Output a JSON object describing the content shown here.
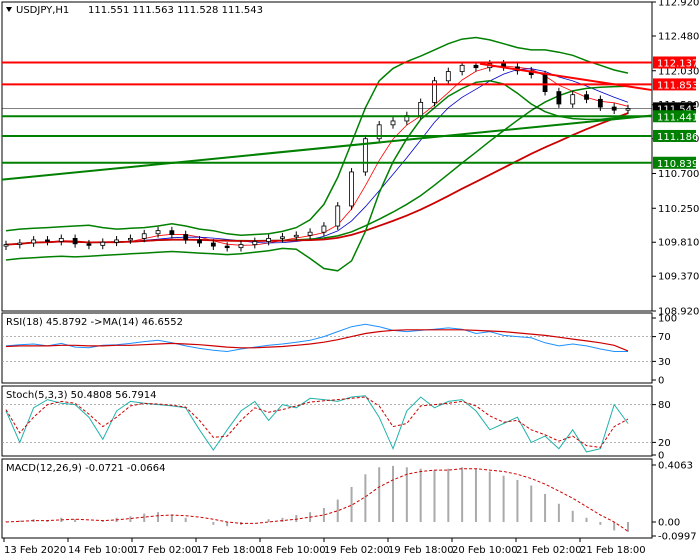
{
  "header": {
    "symbol": "USDJPY,H1",
    "ohlc": "111.551 111.563 111.528 111.543"
  },
  "price_axis": {
    "ticks": [
      "112.920",
      "112.480",
      "112.030",
      "111.590",
      "111.150",
      "110.700",
      "110.250",
      "109.810",
      "109.370",
      "108.920"
    ],
    "ylim": [
      108.92,
      112.92
    ]
  },
  "time_axis": {
    "ticks": [
      "13 Feb 2020",
      "14 Feb 10:00",
      "17 Feb 02:00",
      "17 Feb 18:00",
      "18 Feb 10:00",
      "19 Feb 02:00",
      "19 Feb 18:00",
      "20 Feb 10:00",
      "21 Feb 02:00",
      "21 Feb 18:00"
    ]
  },
  "levels": [
    {
      "label": "112.137",
      "value": 112.137,
      "color": "#ff0000",
      "text_color": "#ffffff"
    },
    {
      "label": "111.853",
      "value": 111.853,
      "color": "#ff0000",
      "text_color": "#ffffff"
    },
    {
      "label": "111.543",
      "value": 111.543,
      "color": "#000000",
      "text_color": "#ffffff"
    },
    {
      "label": "111.441",
      "value": 111.441,
      "color": "#008000",
      "text_color": "#ffffff"
    },
    {
      "label": "111.186",
      "value": 111.186,
      "color": "#008000",
      "text_color": "#ffffff"
    },
    {
      "label": "110.839",
      "value": 110.839,
      "color": "#008000",
      "text_color": "#ffffff"
    }
  ],
  "chart_data": [
    {
      "type": "line",
      "panel": "price",
      "series": [
        {
          "role": "close",
          "values": [
            109.78,
            109.8,
            109.84,
            109.82,
            109.86,
            109.79,
            109.77,
            109.81,
            109.84,
            109.86,
            109.92,
            109.96,
            109.91,
            109.84,
            109.8,
            109.76,
            109.74,
            109.78,
            109.82,
            109.86,
            109.88,
            109.9,
            109.94,
            110.02,
            110.28,
            110.72,
            111.15,
            111.33,
            111.38,
            111.45,
            111.62,
            111.9,
            112.02,
            112.1,
            112.07,
            112.12,
            112.08,
            112.03,
            111.98,
            111.76,
            111.6,
            111.72,
            111.66,
            111.56,
            111.52,
            111.54
          ]
        },
        {
          "role": "bollinger_upper",
          "values": [
            109.96,
            109.98,
            109.99,
            110.0,
            110.01,
            110.02,
            110.03,
            110.0,
            109.98,
            109.99,
            110.0,
            110.02,
            110.05,
            110.02,
            109.98,
            109.96,
            109.92,
            109.9,
            109.91,
            109.92,
            109.95,
            110.0,
            110.1,
            110.3,
            110.65,
            111.1,
            111.55,
            111.9,
            112.06,
            112.15,
            112.22,
            112.3,
            112.38,
            112.44,
            112.46,
            112.43,
            112.38,
            112.33,
            112.3,
            112.3,
            112.27,
            112.23,
            112.16,
            112.1,
            112.04,
            112.0
          ]
        },
        {
          "role": "bollinger_lower",
          "values": [
            109.58,
            109.6,
            109.61,
            109.62,
            109.63,
            109.62,
            109.63,
            109.64,
            109.65,
            109.66,
            109.67,
            109.68,
            109.69,
            109.68,
            109.67,
            109.66,
            109.65,
            109.66,
            109.68,
            109.7,
            109.73,
            109.72,
            109.6,
            109.47,
            109.44,
            109.57,
            109.95,
            110.45,
            110.85,
            111.15,
            111.4,
            111.55,
            111.7,
            111.8,
            111.88,
            111.9,
            111.86,
            111.74,
            111.6,
            111.5,
            111.44,
            111.41,
            111.4,
            111.4,
            111.42,
            111.43
          ]
        }
      ],
      "ylim": [
        108.92,
        112.92
      ]
    },
    {
      "type": "line",
      "panel": "rsi",
      "title": "RSI(18) 45.8792 ->MA(14) 46.6552",
      "series": [
        {
          "role": "rsi",
          "values": [
            55,
            57,
            58,
            55,
            59,
            53,
            52,
            56,
            57,
            59,
            62,
            64,
            60,
            55,
            51,
            48,
            46,
            50,
            53,
            56,
            58,
            61,
            64,
            70,
            78,
            86,
            90,
            86,
            80,
            78,
            80,
            82,
            84,
            82,
            75,
            78,
            72,
            70,
            68,
            60,
            55,
            58,
            55,
            50,
            46,
            46
          ]
        },
        {
          "role": "ma",
          "values": [
            54,
            55,
            55,
            55,
            56,
            56,
            55,
            55,
            56,
            56,
            57,
            58,
            59,
            58,
            57,
            55,
            53,
            52,
            52,
            53,
            54,
            56,
            58,
            61,
            65,
            70,
            75,
            78,
            80,
            81,
            81,
            81,
            81,
            81,
            80,
            79,
            78,
            76,
            74,
            72,
            69,
            66,
            63,
            60,
            56,
            47
          ]
        }
      ],
      "levels": [
        30,
        70
      ],
      "ylim": [
        0,
        100
      ],
      "ticks": [
        "100",
        "70",
        "30",
        "0"
      ]
    },
    {
      "type": "line",
      "panel": "stochastic",
      "title": "Stoch(5,3,3) 50.4808 56.7914",
      "series": [
        {
          "role": "main",
          "values": [
            70,
            20,
            75,
            88,
            82,
            80,
            60,
            25,
            70,
            85,
            82,
            80,
            78,
            75,
            40,
            8,
            40,
            70,
            85,
            55,
            80,
            75,
            90,
            88,
            85,
            92,
            94,
            60,
            10,
            70,
            92,
            75,
            85,
            88,
            70,
            40,
            50,
            60,
            20,
            30,
            10,
            40,
            5,
            10,
            80,
            50
          ]
        },
        {
          "role": "signal",
          "values": [
            72,
            35,
            60,
            80,
            85,
            82,
            65,
            45,
            60,
            78,
            82,
            81,
            79,
            76,
            55,
            28,
            30,
            55,
            75,
            68,
            72,
            78,
            84,
            86,
            88,
            90,
            92,
            78,
            45,
            50,
            78,
            80,
            82,
            85,
            78,
            62,
            52,
            55,
            40,
            32,
            22,
            30,
            15,
            12,
            45,
            57
          ]
        }
      ],
      "levels": [
        20,
        80
      ],
      "ylim": [
        0,
        100
      ],
      "ticks": [
        "80",
        "20",
        "0"
      ]
    },
    {
      "type": "bar",
      "panel": "macd",
      "title": "MACD(12,26,9) -0.0721 -0.0664",
      "series": [
        {
          "role": "histogram",
          "values": [
            0.005,
            0.01,
            0.02,
            0.01,
            0.03,
            0.02,
            0.0,
            0.01,
            0.03,
            0.04,
            0.06,
            0.07,
            0.05,
            0.03,
            0.0,
            -0.02,
            -0.03,
            -0.02,
            0.0,
            0.02,
            0.03,
            0.05,
            0.07,
            0.1,
            0.16,
            0.25,
            0.34,
            0.39,
            0.4,
            0.39,
            0.38,
            0.37,
            0.38,
            0.39,
            0.38,
            0.36,
            0.33,
            0.3,
            0.26,
            0.2,
            0.13,
            0.08,
            0.03,
            -0.02,
            -0.06,
            -0.07
          ]
        },
        {
          "role": "signal",
          "values": [
            0.0,
            0.005,
            0.01,
            0.01,
            0.015,
            0.02,
            0.015,
            0.01,
            0.015,
            0.025,
            0.035,
            0.045,
            0.05,
            0.045,
            0.035,
            0.02,
            0.0,
            -0.01,
            -0.01,
            0.0,
            0.01,
            0.02,
            0.035,
            0.05,
            0.08,
            0.12,
            0.18,
            0.25,
            0.3,
            0.34,
            0.36,
            0.37,
            0.37,
            0.38,
            0.38,
            0.37,
            0.36,
            0.34,
            0.31,
            0.27,
            0.22,
            0.17,
            0.11,
            0.05,
            0.0,
            -0.066
          ]
        }
      ],
      "ylim": [
        -0.0997,
        0.4063
      ],
      "ticks": [
        "0.4063",
        "0.00",
        "-0.0997"
      ]
    }
  ]
}
